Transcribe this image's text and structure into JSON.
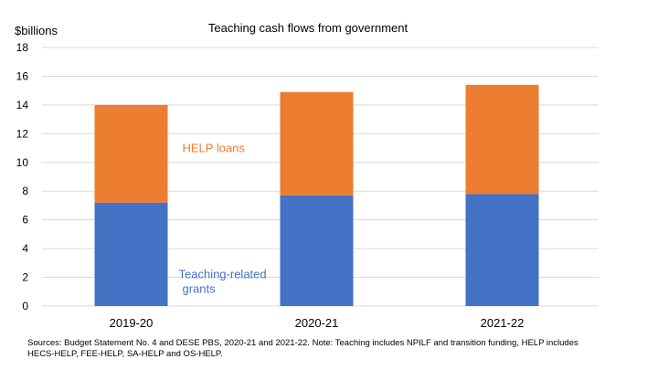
{
  "chart_data": {
    "type": "bar",
    "stacked": true,
    "title": "Teaching cash flows from government",
    "ylabel": "$billions",
    "xlabel": "",
    "ylim": [
      0,
      18
    ],
    "yticks": [
      0,
      2,
      4,
      6,
      8,
      10,
      12,
      14,
      16,
      18
    ],
    "grid": true,
    "categories": [
      "2019-20",
      "2020-21",
      "2021-22"
    ],
    "series": [
      {
        "name": "Teaching-related grants",
        "color": "#4472C4",
        "values": [
          7.2,
          7.7,
          7.8
        ]
      },
      {
        "name": "HELP loans",
        "color": "#ED7D31",
        "values": [
          6.8,
          7.2,
          7.6
        ]
      }
    ],
    "annotations": [
      {
        "text": "HELP loans",
        "color": "#ED7D31",
        "series": 1
      },
      {
        "text": "Teaching-related",
        "color": "#4472C4",
        "series": 0
      },
      {
        "text": "grants",
        "color": "#4472C4",
        "series": 0
      }
    ]
  },
  "footnote": {
    "line1": "Sources: Budget Statement No. 4 and DESE PBS, 2020-21 and 2021-22. Note: Teaching includes NPILF and transition funding, HELP includes",
    "line2": "HECS-HELP, FEE-HELP, SA-HELP and OS-HELP."
  }
}
